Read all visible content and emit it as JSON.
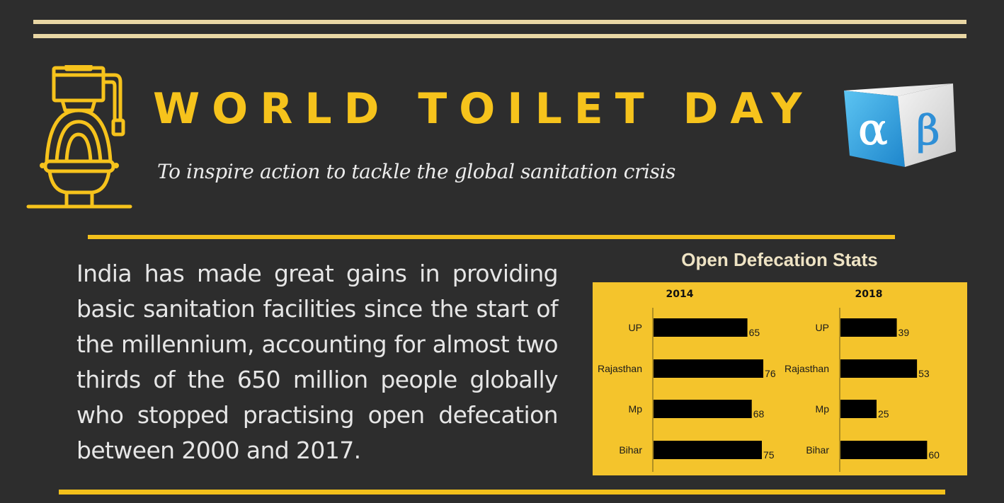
{
  "header": {
    "title": "WORLD TOILET DAY",
    "subtitle": "To inspire action to tackle the global sanitation crisis"
  },
  "body": {
    "paragraph": "India has made great gains in providing basic sanitation facilities since the start of the millennium, accounting for almost two thirds of the 650 million people globally who stopped practising open defecation between 2000 and 2017."
  },
  "icons": {
    "left": "toilet-icon",
    "right": "alpha-beta-cube-logo"
  },
  "colors": {
    "background": "#2d2d2d",
    "accent_yellow": "#f6c31c",
    "panel": "#f4c42c",
    "rule_cream": "#e8d6a4",
    "bar": "#000000"
  },
  "chart_data": [
    {
      "type": "bar",
      "orientation": "horizontal",
      "panel_title": "Open Defecation Stats",
      "title": "2014",
      "categories": [
        "UP",
        "Rajasthan",
        "Mp",
        "Bihar"
      ],
      "values": [
        65,
        76,
        68,
        75
      ]
    },
    {
      "type": "bar",
      "orientation": "horizontal",
      "title": "2018",
      "categories": [
        "UP",
        "Rajasthan",
        "Mp",
        "Bihar"
      ],
      "values": [
        39,
        53,
        25,
        60
      ]
    }
  ]
}
